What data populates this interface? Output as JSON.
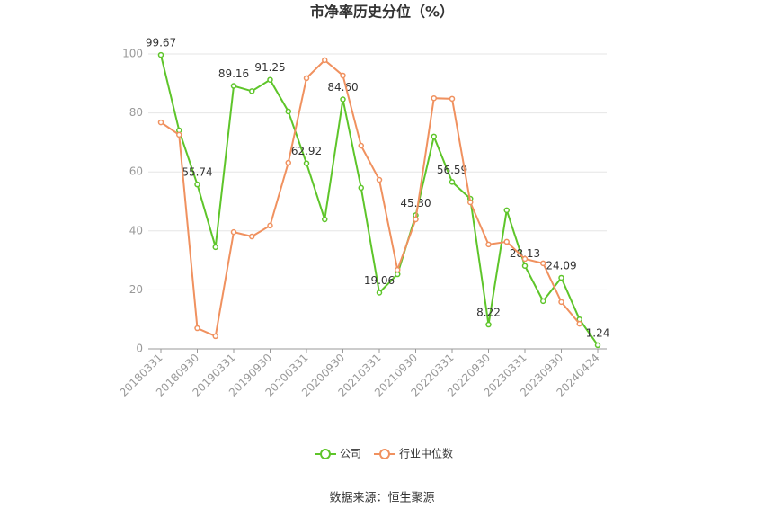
{
  "chart_data": {
    "type": "line",
    "title": "市净率历史分位（%）",
    "categories": [
      "20180331",
      null,
      "20180930",
      null,
      "20190331",
      null,
      "20190930",
      null,
      "20200331",
      null,
      "20200930",
      null,
      "20210331",
      null,
      "20210930",
      null,
      "20220331",
      null,
      "20220930",
      null,
      "20230331",
      null,
      "20230930",
      null,
      "20240424"
    ],
    "series": [
      {
        "name": "公司",
        "color": "#5ec52a",
        "values": [
          99.67,
          74.1,
          55.74,
          34.5,
          89.16,
          87.4,
          91.25,
          80.5,
          62.92,
          43.9,
          84.6,
          54.6,
          19.06,
          25.3,
          45.3,
          72,
          56.59,
          50.9,
          8.22,
          47,
          28.13,
          16.2,
          24.09,
          10,
          1.24
        ],
        "value_labels": [
          "99.67",
          null,
          "55.74",
          null,
          "89.16",
          null,
          "91.25",
          null,
          "62.92",
          null,
          "84.60",
          null,
          "19.06",
          null,
          "45.30",
          null,
          "56.59",
          null,
          "8.22",
          null,
          "28.13",
          null,
          "24.09",
          null,
          "1.24"
        ]
      },
      {
        "name": "行业中位数",
        "color": "#f0915f",
        "values": [
          76.8,
          72.6,
          7,
          4.3,
          39.6,
          38.1,
          41.8,
          63.1,
          91.8,
          97.9,
          92.7,
          68.9,
          57.3,
          26.8,
          43.9,
          85,
          84.8,
          49.7,
          35.4,
          36.3,
          30.5,
          29,
          15.9,
          8.5,
          null
        ]
      }
    ],
    "ylim": [
      0,
      100
    ],
    "yticks": [
      0,
      20,
      40,
      60,
      80,
      100
    ],
    "grid": true,
    "source": "数据来源：恒生聚源"
  }
}
